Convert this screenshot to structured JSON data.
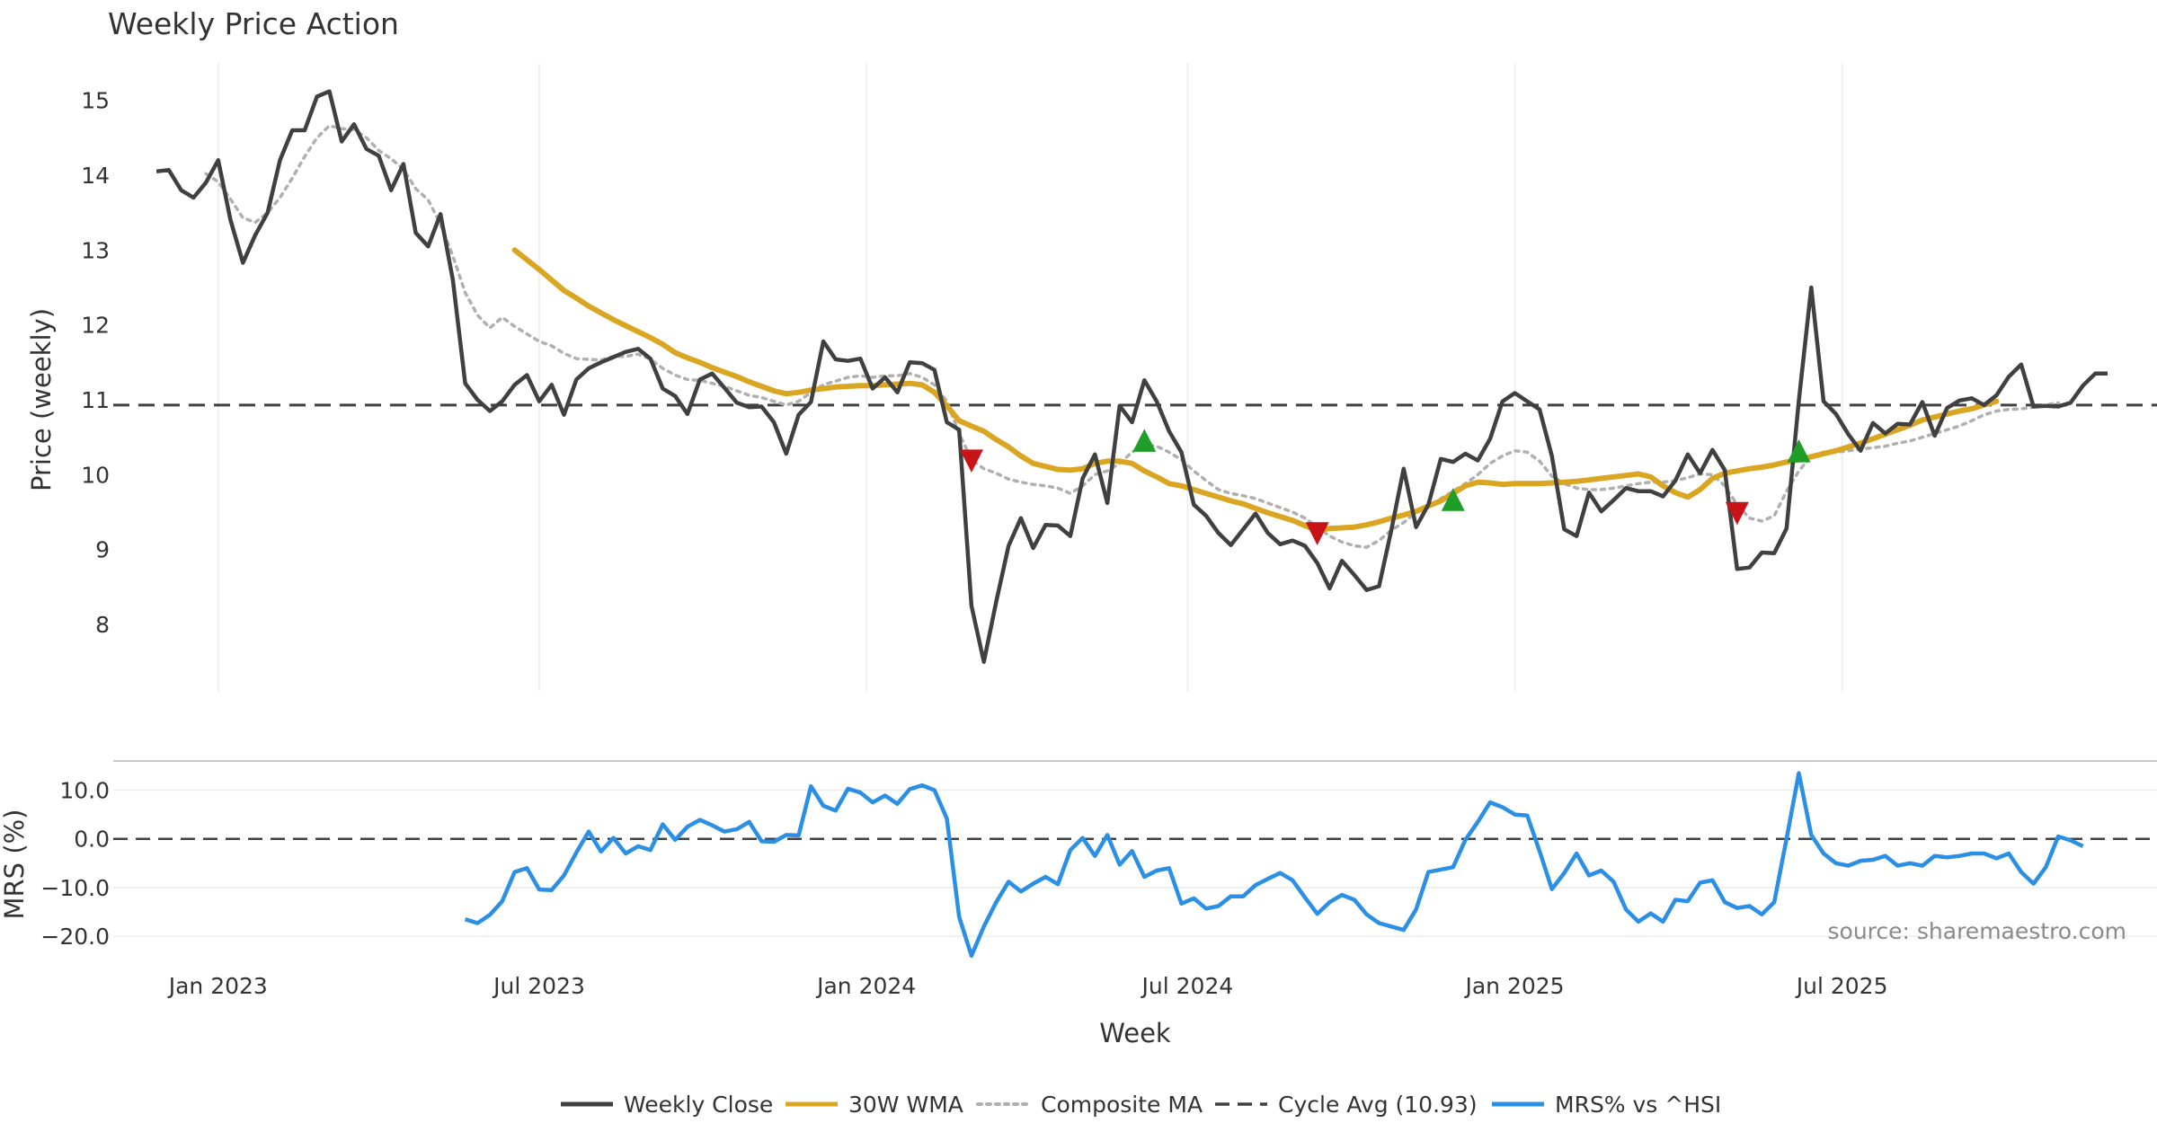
{
  "chart_data": [
    {
      "type": "line",
      "title": "Weekly Price Action",
      "ylabel": "Price (weekly)",
      "xlabel": "Week",
      "x_ticks": [
        "Jan 2023",
        "Jul 2023",
        "Jan 2024",
        "Jul 2024",
        "Jan 2025",
        "Jul 2025"
      ],
      "x_tick_weeks": [
        5,
        31,
        57.5,
        83.5,
        110,
        136.5
      ],
      "x_range": [
        -3.5,
        162
      ],
      "ylim": [
        7.1,
        15.5
      ],
      "y_ticks": [
        8,
        9,
        10,
        11,
        12,
        13,
        14,
        15
      ],
      "cycle_avg": 10.93,
      "series": [
        {
          "name": "Weekly Close",
          "color": "#404040",
          "values": [
            14.05,
            14.07,
            13.8,
            13.7,
            13.9,
            14.2,
            13.4,
            12.83,
            13.2,
            13.5,
            14.2,
            14.6,
            14.6,
            15.05,
            15.12,
            14.45,
            14.68,
            14.35,
            14.26,
            13.8,
            14.15,
            13.23,
            13.05,
            13.48,
            12.6,
            11.22,
            11.0,
            10.85,
            10.98,
            11.2,
            11.33,
            10.98,
            11.2,
            10.8,
            11.27,
            11.42,
            11.5,
            11.57,
            11.64,
            11.68,
            11.55,
            11.15,
            11.05,
            10.81,
            11.27,
            11.35,
            11.16,
            10.96,
            10.9,
            10.91,
            10.7,
            10.28,
            10.8,
            10.97,
            11.78,
            11.54,
            11.52,
            11.55,
            11.15,
            11.3,
            11.1,
            11.5,
            11.49,
            11.4,
            10.7,
            10.6,
            8.25,
            7.5,
            8.3,
            9.05,
            9.42,
            9.02,
            9.33,
            9.32,
            9.18,
            9.95,
            10.27,
            9.62,
            10.92,
            10.7,
            11.26,
            10.98,
            10.58,
            10.3,
            9.6,
            9.45,
            9.22,
            9.06,
            9.27,
            9.48,
            9.22,
            9.07,
            9.12,
            9.05,
            8.82,
            8.48,
            8.85,
            8.66,
            8.46,
            8.51,
            9.26,
            10.08,
            9.3,
            9.6,
            10.21,
            10.17,
            10.28,
            10.19,
            10.48,
            10.98,
            11.09,
            10.98,
            10.87,
            10.25,
            9.27,
            9.18,
            9.76,
            9.51,
            9.66,
            9.82,
            9.78,
            9.78,
            9.71,
            9.92,
            10.27,
            10.02,
            10.33,
            10.06,
            8.74,
            8.76,
            8.96,
            8.95,
            9.28,
            10.99,
            12.5,
            10.98,
            10.81,
            10.54,
            10.32,
            10.69,
            10.55,
            10.68,
            10.67,
            10.97,
            10.52,
            10.89,
            10.99,
            11.02,
            10.93,
            11.06,
            11.31,
            11.47,
            10.91,
            10.92,
            10.91,
            10.96,
            11.19,
            11.35,
            11.35
          ]
        },
        {
          "name": "30W WMA",
          "color": "#DAA520",
          "start_week": 29,
          "values": [
            13.0,
            12.87,
            12.74,
            12.6,
            12.46,
            12.36,
            12.25,
            12.16,
            12.07,
            11.99,
            11.91,
            11.83,
            11.74,
            11.63,
            11.56,
            11.5,
            11.43,
            11.37,
            11.31,
            11.24,
            11.18,
            11.12,
            11.08,
            11.1,
            11.13,
            11.15,
            11.17,
            11.18,
            11.19,
            11.19,
            11.2,
            11.21,
            11.22,
            11.2,
            11.1,
            10.92,
            10.72,
            10.65,
            10.58,
            10.47,
            10.37,
            10.25,
            10.15,
            10.11,
            10.07,
            10.06,
            10.08,
            10.15,
            10.18,
            10.18,
            10.15,
            10.05,
            9.97,
            9.88,
            9.85,
            9.8,
            9.75,
            9.7,
            9.65,
            9.61,
            9.55,
            9.49,
            9.44,
            9.39,
            9.32,
            9.26,
            9.28,
            9.29,
            9.3,
            9.33,
            9.37,
            9.42,
            9.46,
            9.51,
            9.58,
            9.65,
            9.75,
            9.85,
            9.9,
            9.89,
            9.87,
            9.88,
            9.88,
            9.88,
            9.89,
            9.9,
            9.91,
            9.93,
            9.95,
            9.97,
            9.99,
            10.01,
            9.97,
            9.85,
            9.76,
            9.7,
            9.8,
            9.95,
            10.02,
            10.05,
            10.08,
            10.1,
            10.13,
            10.17,
            10.2,
            10.24,
            10.28,
            10.32,
            10.37,
            10.42,
            10.48,
            10.54,
            10.6,
            10.66,
            10.73,
            10.77,
            10.81,
            10.85,
            10.88,
            10.93,
            10.98
          ]
        },
        {
          "name": "Composite MA",
          "color": "#B0B0B0",
          "values": [
            null,
            null,
            null,
            null,
            14.02,
            13.91,
            13.68,
            13.43,
            13.37,
            13.5,
            13.7,
            13.96,
            14.25,
            14.5,
            14.66,
            14.62,
            14.61,
            14.5,
            14.33,
            14.22,
            14.08,
            13.82,
            13.67,
            13.35,
            12.92,
            12.43,
            12.13,
            11.96,
            12.1,
            11.98,
            11.88,
            11.78,
            11.72,
            11.62,
            11.55,
            11.54,
            11.53,
            11.58,
            11.58,
            11.61,
            11.54,
            11.42,
            11.33,
            11.27,
            11.26,
            11.22,
            11.18,
            11.12,
            11.06,
            11.03,
            10.98,
            10.93,
            10.98,
            11.1,
            11.2,
            11.25,
            11.3,
            11.32,
            11.3,
            11.32,
            11.32,
            11.35,
            11.3,
            11.2,
            10.98,
            10.55,
            10.2,
            10.08,
            10.02,
            9.94,
            9.9,
            9.87,
            9.85,
            9.82,
            9.75,
            9.85,
            10.0,
            10.05,
            10.15,
            10.3,
            10.4,
            10.38,
            10.3,
            10.2,
            10.05,
            9.92,
            9.8,
            9.75,
            9.72,
            9.68,
            9.62,
            9.56,
            9.5,
            9.42,
            9.3,
            9.18,
            9.1,
            9.05,
            9.03,
            9.12,
            9.26,
            9.36,
            9.5,
            9.58,
            9.68,
            9.78,
            9.88,
            10.0,
            10.15,
            10.25,
            10.32,
            10.3,
            10.18,
            9.98,
            9.88,
            9.82,
            9.8,
            9.8,
            9.82,
            9.85,
            9.88,
            9.9,
            9.9,
            9.92,
            9.96,
            10.01,
            10.0,
            9.85,
            9.6,
            9.42,
            9.38,
            9.45,
            9.78,
            10.05,
            10.25,
            10.3,
            10.3,
            10.32,
            10.34,
            10.36,
            10.38,
            10.42,
            10.45,
            10.5,
            10.55,
            10.6,
            10.65,
            10.72,
            10.8,
            10.85,
            10.87,
            10.88,
            10.9,
            10.93,
            10.96
          ]
        },
        {
          "name": "Cycle Avg (10.93)",
          "color": "#404040"
        }
      ],
      "signals": [
        {
          "type": "sell",
          "week": 66,
          "value": 10.22,
          "color": "#C81418"
        },
        {
          "type": "buy",
          "week": 80,
          "value": 10.42,
          "color": "#1E9E28"
        },
        {
          "type": "sell",
          "week": 94,
          "value": 9.25,
          "color": "#C81418"
        },
        {
          "type": "buy",
          "week": 105,
          "value": 9.63,
          "color": "#1E9E28"
        },
        {
          "type": "sell",
          "week": 128,
          "value": 9.52,
          "color": "#C81418"
        },
        {
          "type": "buy",
          "week": 133,
          "value": 10.28,
          "color": "#1E9E28"
        }
      ]
    },
    {
      "type": "line",
      "ylabel": "MRS (%)",
      "ylim": [
        -22,
        16
      ],
      "y_ticks": [
        10,
        0,
        -10,
        -20
      ],
      "y_tick_labels": [
        "10.0",
        "0.0",
        "−10.0",
        "−20.0"
      ],
      "series": [
        {
          "name": "MRS% vs ^HSI",
          "color": "#2B8FE5",
          "start_week": 25,
          "values": [
            -16.5,
            -17.3,
            -15.6,
            -12.8,
            -6.8,
            -6.0,
            -10.4,
            -10.5,
            -7.5,
            -2.8,
            1.5,
            -2.6,
            0.2,
            -3.0,
            -1.5,
            -2.3,
            3.0,
            -0.2,
            2.5,
            3.9,
            2.8,
            1.5,
            2.0,
            3.5,
            -0.5,
            -0.6,
            0.8,
            0.7,
            10.8,
            6.8,
            5.8,
            10.3,
            9.5,
            7.5,
            8.9,
            7.2,
            10.2,
            11.0,
            10.0,
            4.2,
            -16.0,
            -24.0,
            -18.0,
            -13.0,
            -8.8,
            -10.8,
            -9.2,
            -7.8,
            -9.3,
            -2.3,
            0.2,
            -3.5,
            0.8,
            -5.3,
            -2.5,
            -7.8,
            -6.5,
            -6.0,
            -13.3,
            -12.2,
            -14.3,
            -13.8,
            -11.8,
            -11.8,
            -9.5,
            -8.2,
            -7.0,
            -8.5,
            -12.0,
            -15.4,
            -13.0,
            -11.5,
            -12.5,
            -15.5,
            -17.3,
            -18.0,
            -18.7,
            -14.5,
            -6.8,
            -6.3,
            -5.8,
            -0.2,
            3.5,
            7.5,
            6.5,
            5.0,
            4.8,
            -2.5,
            -10.3,
            -7.0,
            -3.0,
            -7.5,
            -6.5,
            -8.8,
            -14.5,
            -17.0,
            -15.3,
            -17.0,
            -12.5,
            -12.8,
            -9.0,
            -8.5,
            -13.0,
            -14.2,
            -13.8,
            -15.5,
            -13.0,
            0.0,
            13.5,
            0.8,
            -3.0,
            -5.0,
            -5.5,
            -4.5,
            -4.3,
            -3.5,
            -5.5,
            -5.0,
            -5.5,
            -3.5,
            -3.8,
            -3.5,
            -3.0,
            -3.0,
            -4.0,
            -3.0,
            -6.8,
            -9.2,
            -5.8,
            0.5,
            -0.3,
            -1.5
          ]
        }
      ]
    }
  ],
  "x_ticks": [
    "Jan 2023",
    "Jul 2023",
    "Jan 2024",
    "Jul 2024",
    "Jan 2025",
    "Jul 2025"
  ],
  "xlabel": "Week",
  "legend": [
    {
      "label": "Weekly Close",
      "style": "solid",
      "color": "#404040"
    },
    {
      "label": "30W WMA",
      "style": "solid",
      "color": "#DAA520"
    },
    {
      "label": "Composite MA",
      "style": "dotted",
      "color": "#B0B0B0"
    },
    {
      "label": "Cycle Avg (10.93)",
      "style": "dashed",
      "color": "#404040"
    },
    {
      "label": "MRS% vs ^HSI",
      "style": "solid",
      "color": "#2B8FE5"
    }
  ],
  "source": "source: sharemaestro.com"
}
